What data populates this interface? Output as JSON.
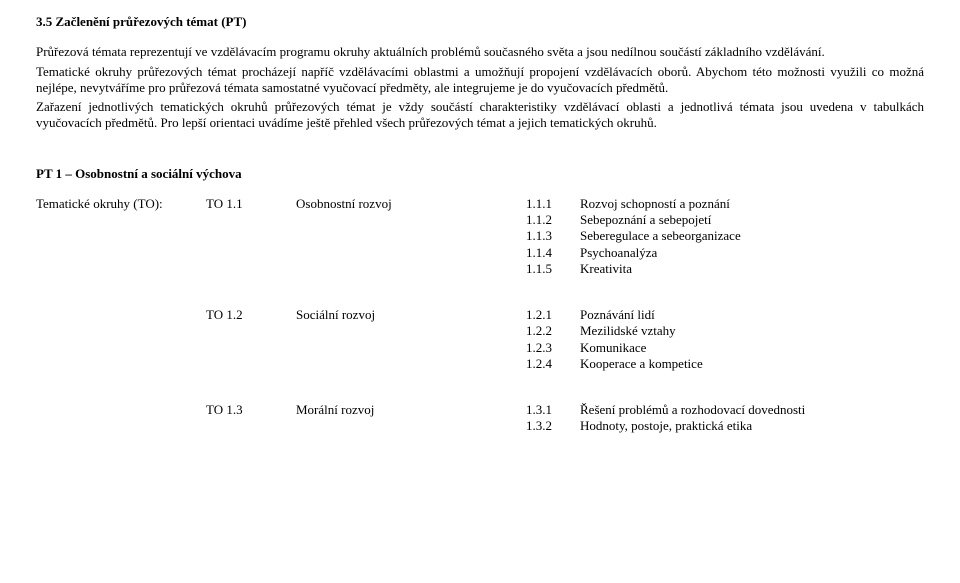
{
  "section_heading": "3.5     Začlenění průřezových témat (PT)",
  "paragraphs": {
    "p1": "Průřezová témata reprezentují ve vzdělávacím programu okruhy aktuálních problémů současného světa a jsou nedílnou součástí základního vzdělávání.",
    "p2": "Tematické okruhy průřezových témat procházejí napříč vzdělávacími oblastmi a umožňují propojení vzdělávacích oborů. Abychom této možnosti využili co možná nejlépe, nevytváříme pro průřezová témata samostatné vyučovací předměty, ale integrujeme je do  vyučovacích předmětů.",
    "p3": "Zařazení jednotlivých tematických okruhů průřezových témat je vždy součástí charakteristiky vzdělávací oblasti a jednotlivá témata jsou uvedena v tabulkách vyučovacích předmětů. Pro lepší orientaci uvádíme ještě přehled všech průřezových témat a jejich tematických okruhů."
  },
  "pt1": {
    "heading": "PT 1 – Osobnostní a sociální výchova",
    "label": "Tematické okruhy (TO):",
    "to1": {
      "code": "TO 1.1",
      "name": "Osobnostní rozvoj",
      "items": [
        {
          "code": "1.1.1",
          "text": "Rozvoj schopností a poznání"
        },
        {
          "code": "1.1.2",
          "text": "Sebepoznání a sebepojetí"
        },
        {
          "code": "1.1.3",
          "text": "Seberegulace a sebeorganizace"
        },
        {
          "code": "1.1.4",
          "text": "Psychoanalýza"
        },
        {
          "code": "1.1.5",
          "text": "Kreativita"
        }
      ]
    },
    "to2": {
      "code": "TO 1.2",
      "name": "Sociální rozvoj",
      "items": [
        {
          "code": "1.2.1",
          "text": "Poznávání lidí"
        },
        {
          "code": "1.2.2",
          "text": "Mezilidské vztahy"
        },
        {
          "code": "1.2.3",
          "text": "Komunikace"
        },
        {
          "code": "1.2.4",
          "text": "Kooperace a kompetice"
        }
      ]
    },
    "to3": {
      "code": "TO 1.3",
      "name": "Morální rozvoj",
      "items": [
        {
          "code": "1.3.1",
          "text": "Řešení problémů a rozhodovací dovednosti"
        },
        {
          "code": "1.3.2",
          "text": "Hodnoty, postoje, praktická etika"
        }
      ]
    }
  }
}
